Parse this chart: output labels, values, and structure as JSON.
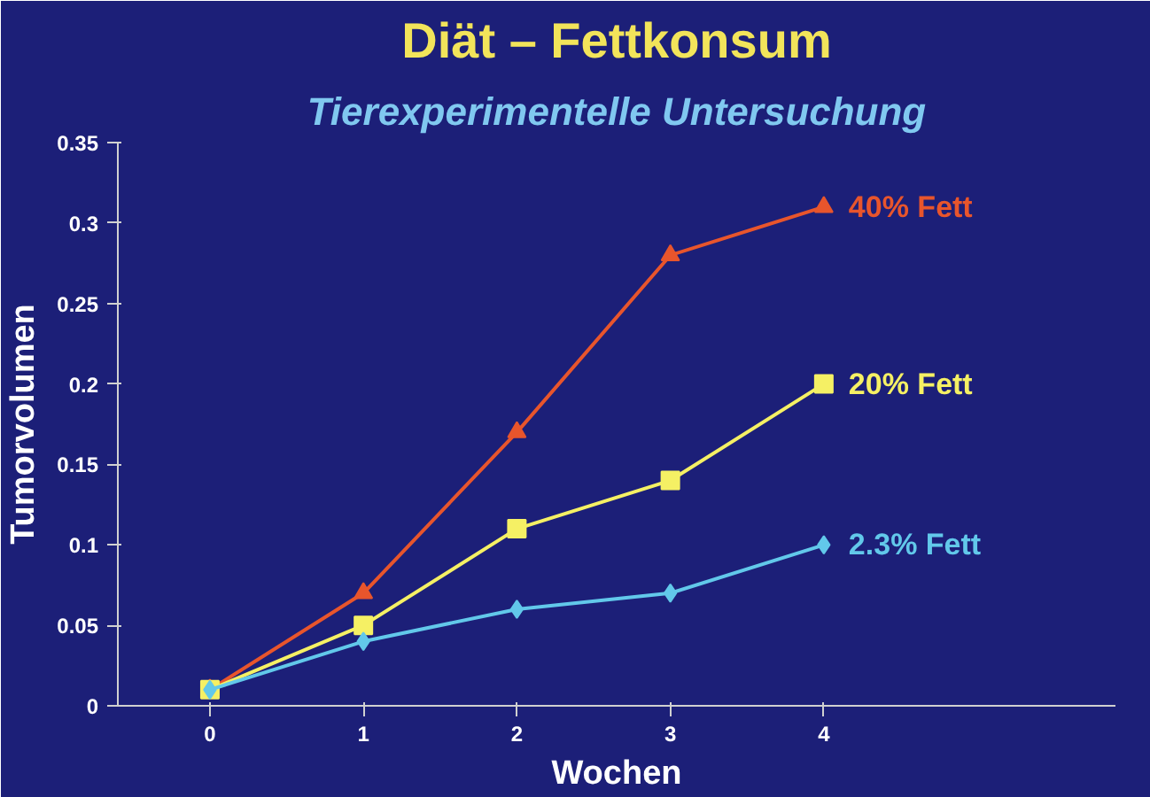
{
  "chart_data": {
    "type": "line",
    "title": "Diät – Fettkonsum",
    "subtitle": "Tierexperimentelle Untersuchung",
    "xlabel": "Wochen",
    "ylabel": "Tumorvolumen",
    "categories": [
      "0",
      "1",
      "2",
      "3",
      "4"
    ],
    "series": [
      {
        "name": "40% Fett",
        "color": "#e8552c",
        "marker": "triangle",
        "values": [
          0.01,
          0.07,
          0.17,
          0.28,
          0.31
        ]
      },
      {
        "name": "20% Fett",
        "color": "#f5f064",
        "marker": "square",
        "values": [
          0.01,
          0.05,
          0.11,
          0.14,
          0.2
        ]
      },
      {
        "name": "2.3% Fett",
        "color": "#62c8ea",
        "marker": "diamond",
        "values": [
          0.01,
          0.04,
          0.06,
          0.07,
          0.1
        ]
      }
    ],
    "ylim": [
      0,
      0.35
    ],
    "yticks": [
      0,
      0.05,
      0.1,
      0.15,
      0.2,
      0.25,
      0.3,
      0.35
    ],
    "grid": false,
    "legend": false,
    "line_style": "solid"
  }
}
